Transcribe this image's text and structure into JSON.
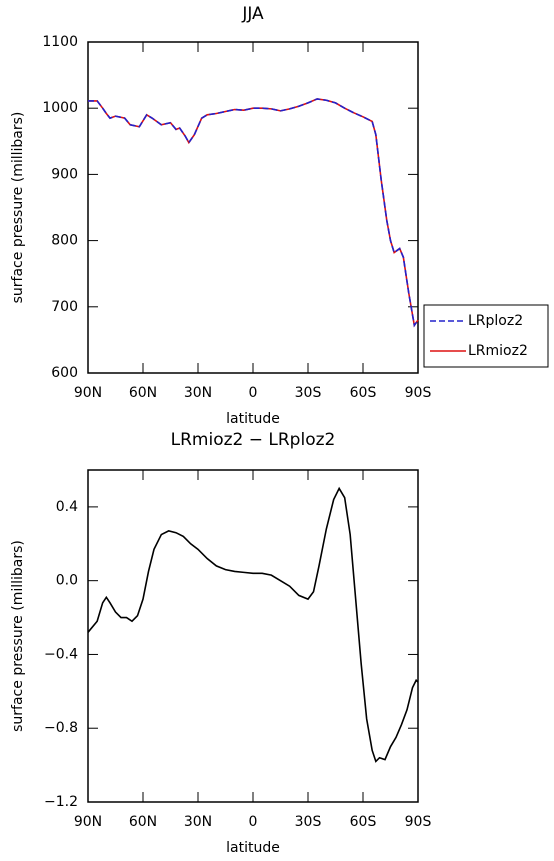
{
  "chart_data": [
    {
      "type": "line",
      "title": "JJA",
      "xlabel": "latitude",
      "ylabel": "surface pressure (millibars)",
      "x": [
        90,
        85,
        82,
        80,
        78,
        75,
        70,
        67,
        62,
        58,
        55,
        50,
        45,
        42,
        40,
        37,
        35,
        32,
        28,
        25,
        20,
        15,
        10,
        5,
        0,
        -5,
        -10,
        -15,
        -20,
        -25,
        -30,
        -35,
        -40,
        -45,
        -50,
        -55,
        -60,
        -65,
        -67,
        -70,
        -73,
        -75,
        -77,
        -80,
        -82,
        -85,
        -88,
        -90
      ],
      "series": [
        {
          "name": "LRploz2",
          "color": "#2222cc",
          "linestyle": "dashed",
          "values": [
            1011,
            1011,
            1000,
            992,
            985,
            988,
            985,
            975,
            972,
            990,
            985,
            975,
            978,
            968,
            970,
            958,
            948,
            960,
            985,
            990,
            992,
            995,
            998,
            997,
            1000,
            1000,
            999,
            996,
            999,
            1003,
            1008,
            1014,
            1012,
            1008,
            1000,
            993,
            987,
            980,
            960,
            890,
            830,
            800,
            782,
            788,
            775,
            720,
            672,
            680
          ]
        },
        {
          "name": "LRmioz2",
          "color": "#dd1111",
          "linestyle": "solid",
          "values": [
            1011,
            1011,
            1000,
            992,
            985,
            988,
            985,
            975,
            972,
            990,
            985,
            975,
            978,
            968,
            970,
            958,
            948,
            960,
            985,
            990,
            992,
            995,
            998,
            997,
            1000,
            1000,
            999,
            996,
            999,
            1003,
            1008,
            1014,
            1012,
            1008,
            1000,
            993,
            987,
            980,
            960,
            890,
            830,
            800,
            782,
            788,
            775,
            720,
            672,
            680
          ]
        }
      ],
      "xlim": [
        90,
        -90
      ],
      "xticks": [
        {
          "value": 90,
          "label": "90N"
        },
        {
          "value": 60,
          "label": "60N"
        },
        {
          "value": 30,
          "label": "30N"
        },
        0,
        {
          "value": -30,
          "label": "30S"
        },
        {
          "value": -60,
          "label": "60S"
        },
        {
          "value": -90,
          "label": "90S"
        }
      ],
      "ylim": [
        600,
        1100
      ],
      "yticks": [
        600,
        700,
        800,
        900,
        1000,
        1100
      ],
      "legend": "outside-right"
    },
    {
      "type": "line",
      "title": "LRmioz2 − LRploz2",
      "xlabel": "latitude",
      "ylabel": "surface pressure (millibars)",
      "x": [
        90,
        85,
        82,
        80,
        78,
        75,
        72,
        69,
        66,
        63,
        60,
        57,
        54,
        50,
        46,
        42,
        38,
        34,
        30,
        25,
        20,
        15,
        10,
        5,
        0,
        -5,
        -10,
        -15,
        -20,
        -25,
        -30,
        -33,
        -36,
        -40,
        -44,
        -47,
        -50,
        -53,
        -56,
        -59,
        -62,
        -65,
        -67,
        -69,
        -72,
        -75,
        -78,
        -81,
        -84,
        -87,
        -89,
        -90
      ],
      "values": [
        -0.28,
        -0.22,
        -0.12,
        -0.09,
        -0.12,
        -0.17,
        -0.2,
        -0.2,
        -0.22,
        -0.19,
        -0.1,
        0.05,
        0.17,
        0.25,
        0.27,
        0.26,
        0.24,
        0.2,
        0.17,
        0.12,
        0.08,
        0.06,
        0.05,
        0.045,
        0.04,
        0.04,
        0.03,
        0.0,
        -0.03,
        -0.08,
        -0.1,
        -0.06,
        0.08,
        0.28,
        0.44,
        0.5,
        0.45,
        0.25,
        -0.1,
        -0.45,
        -0.75,
        -0.92,
        -0.98,
        -0.96,
        -0.97,
        -0.9,
        -0.85,
        -0.78,
        -0.7,
        -0.58,
        -0.54,
        -0.55
      ],
      "color": "#000000",
      "xlim": [
        90,
        -90
      ],
      "xticks": [
        {
          "value": 90,
          "label": "90N"
        },
        {
          "value": 60,
          "label": "60N"
        },
        {
          "value": 30,
          "label": "30N"
        },
        0,
        {
          "value": -30,
          "label": "30S"
        },
        {
          "value": -60,
          "label": "60S"
        },
        {
          "value": -90,
          "label": "90S"
        }
      ],
      "ylim": [
        -1.2,
        0.6
      ],
      "yticks": [
        {
          "value": -1.2,
          "label": "−1.2"
        },
        {
          "value": -0.8,
          "label": "−0.8"
        },
        {
          "value": -0.4,
          "label": "−0.4"
        },
        {
          "value": 0,
          "label": "0.0"
        },
        0.4
      ]
    }
  ]
}
